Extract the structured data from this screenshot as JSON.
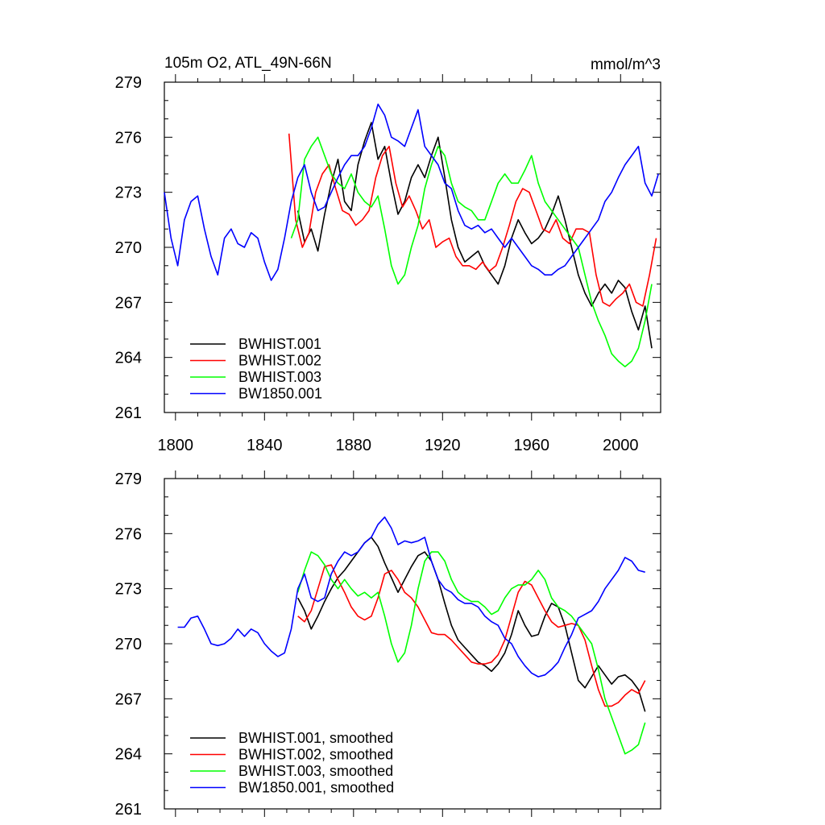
{
  "title_left": "105m O2, ATL_49N-66N",
  "title_right": "mmol/m^3",
  "chart_data": [
    {
      "type": "line",
      "xlim": [
        1795,
        2018
      ],
      "ylim": [
        261,
        279
      ],
      "yticks": [
        261,
        264,
        267,
        270,
        273,
        276,
        279
      ],
      "xticks": [
        1800,
        1840,
        1880,
        1920,
        1960,
        2000
      ],
      "show_xtick_labels": true,
      "legend_position": "bottom-left",
      "series": [
        {
          "name": "BWHIST.001",
          "color": "#000000",
          "x": [
            1855,
            1858,
            1861,
            1864,
            1867,
            1870,
            1873,
            1876,
            1879,
            1882,
            1885,
            1888,
            1891,
            1894,
            1897,
            1900,
            1903,
            1906,
            1909,
            1912,
            1915,
            1918,
            1921,
            1924,
            1927,
            1930,
            1933,
            1936,
            1939,
            1942,
            1945,
            1948,
            1951,
            1954,
            1957,
            1960,
            1963,
            1966,
            1969,
            1972,
            1975,
            1978,
            1981,
            1984,
            1987,
            1990,
            1993,
            1996,
            1999,
            2002,
            2005,
            2008,
            2011,
            2014
          ],
          "y": [
            272.0,
            270.3,
            271.0,
            269.8,
            271.8,
            273.5,
            274.8,
            272.5,
            272.0,
            274.5,
            275.8,
            276.8,
            274.8,
            275.5,
            273.5,
            271.8,
            272.5,
            273.8,
            274.5,
            273.8,
            275.0,
            276.0,
            273.8,
            271.5,
            270.0,
            269.2,
            269.5,
            269.8,
            269.0,
            268.5,
            268.0,
            269.0,
            270.5,
            271.5,
            270.8,
            270.2,
            270.5,
            271.0,
            271.8,
            272.8,
            271.5,
            270.0,
            268.5,
            267.5,
            266.8,
            267.5,
            268.0,
            267.5,
            268.2,
            267.8,
            266.5,
            265.5,
            266.8,
            264.5
          ]
        },
        {
          "name": "BWHIST.002",
          "color": "#ff0000",
          "x": [
            1851,
            1854,
            1857,
            1860,
            1863,
            1866,
            1869,
            1872,
            1875,
            1878,
            1881,
            1884,
            1887,
            1890,
            1893,
            1896,
            1899,
            1902,
            1905,
            1908,
            1911,
            1914,
            1917,
            1920,
            1923,
            1926,
            1929,
            1932,
            1935,
            1938,
            1941,
            1944,
            1947,
            1950,
            1953,
            1956,
            1959,
            1962,
            1965,
            1968,
            1971,
            1974,
            1977,
            1980,
            1983,
            1986,
            1989,
            1992,
            1995,
            1998,
            2001,
            2004,
            2007,
            2010,
            2013,
            2016
          ],
          "y": [
            276.2,
            271.5,
            270.0,
            270.8,
            273.0,
            274.0,
            274.5,
            273.2,
            272.0,
            271.8,
            271.2,
            271.5,
            272.0,
            273.8,
            275.0,
            275.5,
            273.5,
            272.2,
            272.8,
            272.0,
            271.0,
            271.5,
            270.0,
            270.3,
            270.5,
            269.5,
            269.0,
            269.0,
            268.8,
            269.2,
            268.7,
            269.0,
            270.0,
            271.2,
            272.5,
            273.2,
            273.0,
            272.0,
            271.0,
            270.8,
            271.5,
            270.5,
            270.2,
            271.0,
            271.0,
            270.8,
            268.5,
            267.0,
            266.8,
            267.2,
            267.5,
            268.0,
            267.0,
            266.8,
            268.5,
            270.5
          ]
        },
        {
          "name": "BWHIST.003",
          "color": "#00ff00",
          "x": [
            1852,
            1855,
            1858,
            1861,
            1864,
            1867,
            1870,
            1873,
            1876,
            1879,
            1882,
            1885,
            1888,
            1891,
            1894,
            1897,
            1900,
            1903,
            1906,
            1909,
            1912,
            1915,
            1918,
            1921,
            1924,
            1927,
            1930,
            1933,
            1936,
            1939,
            1942,
            1945,
            1948,
            1951,
            1954,
            1957,
            1960,
            1963,
            1966,
            1969,
            1972,
            1975,
            1978,
            1981,
            1984,
            1987,
            1990,
            1993,
            1996,
            1999,
            2002,
            2005,
            2008,
            2011,
            2014
          ],
          "y": [
            270.5,
            271.5,
            274.8,
            275.5,
            276.0,
            275.0,
            274.0,
            273.5,
            273.2,
            274.0,
            273.0,
            272.5,
            272.2,
            272.8,
            271.0,
            269.0,
            268.0,
            268.5,
            270.0,
            271.2,
            273.2,
            274.5,
            275.5,
            275.0,
            273.5,
            272.5,
            272.2,
            272.0,
            271.5,
            271.5,
            272.5,
            273.5,
            274.0,
            273.5,
            273.5,
            274.2,
            275.0,
            273.5,
            272.5,
            272.0,
            271.5,
            271.0,
            270.5,
            270.0,
            268.5,
            267.0,
            266.0,
            265.2,
            264.2,
            263.8,
            263.5,
            263.8,
            264.5,
            266.0,
            268.0
          ]
        },
        {
          "name": "BW1850.001",
          "color": "#0000ff",
          "x": [
            1795,
            1798,
            1801,
            1804,
            1807,
            1810,
            1813,
            1816,
            1819,
            1822,
            1825,
            1828,
            1831,
            1834,
            1837,
            1840,
            1843,
            1846,
            1849,
            1852,
            1855,
            1858,
            1861,
            1864,
            1867,
            1870,
            1873,
            1876,
            1879,
            1882,
            1885,
            1888,
            1891,
            1894,
            1897,
            1900,
            1903,
            1906,
            1909,
            1912,
            1915,
            1918,
            1921,
            1924,
            1927,
            1930,
            1933,
            1936,
            1939,
            1942,
            1945,
            1948,
            1951,
            1954,
            1957,
            1960,
            1963,
            1966,
            1969,
            1972,
            1975,
            1978,
            1981,
            1984,
            1987,
            1990,
            1993,
            1996,
            1999,
            2002,
            2005,
            2008,
            2011,
            2014,
            2017
          ],
          "y": [
            273.0,
            270.5,
            269.0,
            271.5,
            272.5,
            272.8,
            271.0,
            269.5,
            268.5,
            270.5,
            271.0,
            270.2,
            270.0,
            270.8,
            270.5,
            269.2,
            268.2,
            268.8,
            270.5,
            272.5,
            273.8,
            274.5,
            273.0,
            272.0,
            272.2,
            273.0,
            273.8,
            274.5,
            275.0,
            275.0,
            275.5,
            276.5,
            277.8,
            277.2,
            276.0,
            275.8,
            275.5,
            276.5,
            277.5,
            275.5,
            275.0,
            274.5,
            273.5,
            273.2,
            272.0,
            271.2,
            271.0,
            271.2,
            270.8,
            271.0,
            270.5,
            270.0,
            270.5,
            270.0,
            269.5,
            269.0,
            268.8,
            268.5,
            268.5,
            268.8,
            269.0,
            269.5,
            270.0,
            270.5,
            271.0,
            271.5,
            272.5,
            273.0,
            273.8,
            274.5,
            275.0,
            275.5,
            273.5,
            272.8,
            274.0
          ]
        }
      ]
    },
    {
      "type": "line",
      "xlim": [
        1795,
        2018
      ],
      "ylim": [
        261,
        279
      ],
      "yticks": [
        261,
        264,
        267,
        270,
        273,
        276,
        279
      ],
      "xticks": [
        1800,
        1840,
        1880,
        1920,
        1960,
        2000
      ],
      "show_xtick_labels": false,
      "legend_position": "bottom-left",
      "series": [
        {
          "name": "BWHIST.001, smoothed",
          "color": "#000000",
          "x": [
            1855,
            1858,
            1861,
            1864,
            1867,
            1870,
            1873,
            1876,
            1879,
            1882,
            1885,
            1888,
            1891,
            1894,
            1897,
            1900,
            1903,
            1906,
            1909,
            1912,
            1915,
            1918,
            1921,
            1924,
            1927,
            1930,
            1933,
            1936,
            1939,
            1942,
            1945,
            1948,
            1951,
            1954,
            1957,
            1960,
            1963,
            1966,
            1969,
            1972,
            1975,
            1978,
            1981,
            1984,
            1987,
            1990,
            1993,
            1996,
            1999,
            2002,
            2005,
            2008,
            2011
          ],
          "y": [
            272.5,
            271.8,
            270.8,
            271.5,
            272.3,
            273.0,
            273.6,
            274.0,
            274.5,
            275.0,
            275.5,
            275.8,
            275.3,
            274.4,
            273.6,
            272.8,
            273.5,
            274.2,
            274.8,
            275.0,
            274.5,
            273.5,
            272.2,
            271.0,
            270.2,
            269.8,
            269.4,
            269.0,
            268.8,
            268.5,
            268.9,
            269.5,
            270.5,
            271.8,
            271.0,
            270.4,
            270.5,
            271.5,
            272.2,
            272.0,
            271.0,
            269.5,
            268.0,
            267.6,
            268.2,
            268.8,
            268.3,
            267.8,
            268.2,
            268.3,
            268.0,
            267.5,
            266.3
          ]
        },
        {
          "name": "BWHIST.002, smoothed",
          "color": "#ff0000",
          "x": [
            1855,
            1858,
            1861,
            1864,
            1867,
            1870,
            1873,
            1876,
            1879,
            1882,
            1885,
            1888,
            1891,
            1894,
            1897,
            1900,
            1903,
            1906,
            1909,
            1912,
            1915,
            1918,
            1921,
            1924,
            1927,
            1930,
            1933,
            1936,
            1939,
            1942,
            1945,
            1948,
            1951,
            1954,
            1957,
            1960,
            1963,
            1966,
            1969,
            1972,
            1975,
            1978,
            1981,
            1984,
            1987,
            1990,
            1993,
            1996,
            1999,
            2002,
            2005,
            2008,
            2011
          ],
          "y": [
            271.5,
            271.2,
            271.8,
            273.0,
            274.2,
            274.3,
            273.5,
            272.8,
            272.0,
            271.5,
            271.3,
            271.5,
            272.5,
            273.8,
            274.0,
            273.5,
            272.8,
            272.5,
            272.0,
            271.3,
            270.6,
            270.5,
            270.5,
            270.2,
            269.8,
            269.4,
            269.0,
            268.9,
            268.9,
            269.0,
            269.4,
            270.2,
            271.5,
            272.8,
            273.4,
            273.2,
            272.5,
            271.8,
            271.2,
            270.9,
            271.0,
            271.1,
            271.0,
            270.2,
            268.8,
            267.5,
            266.6,
            266.6,
            266.8,
            267.2,
            267.5,
            267.3,
            268.0
          ]
        },
        {
          "name": "BWHIST.003, smoothed",
          "color": "#00ff00",
          "x": [
            1855,
            1858,
            1861,
            1864,
            1867,
            1870,
            1873,
            1876,
            1879,
            1882,
            1885,
            1888,
            1891,
            1894,
            1897,
            1900,
            1903,
            1906,
            1909,
            1912,
            1915,
            1918,
            1921,
            1924,
            1927,
            1930,
            1933,
            1936,
            1939,
            1942,
            1945,
            1948,
            1951,
            1954,
            1957,
            1960,
            1963,
            1966,
            1969,
            1972,
            1975,
            1978,
            1981,
            1984,
            1987,
            1990,
            1993,
            1996,
            1999,
            2002,
            2005,
            2008,
            2011
          ],
          "y": [
            272.8,
            274.0,
            275.0,
            274.8,
            274.3,
            273.5,
            273.0,
            273.5,
            273.0,
            272.6,
            272.8,
            272.5,
            272.8,
            271.5,
            270.0,
            269.0,
            269.5,
            271.0,
            273.0,
            274.5,
            275.0,
            275.0,
            274.5,
            273.5,
            272.8,
            272.5,
            272.3,
            272.3,
            272.0,
            271.6,
            271.8,
            272.5,
            273.0,
            273.2,
            273.2,
            273.5,
            274.0,
            273.5,
            272.5,
            272.0,
            271.8,
            271.5,
            271.0,
            270.5,
            270.0,
            268.6,
            267.0,
            266.0,
            265.0,
            264.0,
            264.2,
            264.5,
            265.7
          ]
        },
        {
          "name": "BW1850.001, smoothed",
          "color": "#0000ff",
          "x": [
            1795,
            1798,
            1801,
            1804,
            1807,
            1810,
            1813,
            1816,
            1819,
            1822,
            1825,
            1828,
            1831,
            1834,
            1837,
            1840,
            1843,
            1846,
            1849,
            1852,
            1855,
            1858,
            1861,
            1864,
            1867,
            1870,
            1873,
            1876,
            1879,
            1882,
            1885,
            1888,
            1891,
            1894,
            1897,
            1900,
            1903,
            1906,
            1909,
            1912,
            1915,
            1918,
            1921,
            1924,
            1927,
            1930,
            1933,
            1936,
            1939,
            1942,
            1945,
            1948,
            1951,
            1954,
            1957,
            1960,
            1963,
            1966,
            1969,
            1972,
            1975,
            1978,
            1981,
            1984,
            1987,
            1990,
            1993,
            1996,
            1999,
            2002,
            2005,
            2008,
            2011,
            2014
          ],
          "y": [
            null,
            null,
            270.9,
            270.9,
            271.4,
            271.5,
            270.8,
            270.0,
            269.9,
            270.0,
            270.3,
            270.8,
            270.4,
            270.8,
            270.6,
            270.0,
            269.6,
            269.3,
            269.5,
            270.8,
            273.0,
            273.8,
            272.5,
            272.3,
            272.5,
            273.8,
            274.5,
            275.0,
            274.8,
            275.0,
            275.5,
            275.8,
            276.5,
            276.9,
            276.3,
            275.4,
            275.6,
            275.5,
            275.6,
            275.8,
            274.5,
            273.5,
            273.0,
            272.8,
            272.4,
            272.2,
            272.2,
            272.0,
            271.5,
            271.2,
            271.0,
            270.3,
            270.0,
            269.3,
            268.8,
            268.4,
            268.2,
            268.3,
            268.6,
            269.0,
            269.8,
            270.5,
            271.4,
            271.6,
            271.8,
            272.3,
            273.0,
            273.5,
            274.0,
            274.7,
            274.5,
            274.0,
            273.9,
            null
          ]
        }
      ]
    }
  ]
}
